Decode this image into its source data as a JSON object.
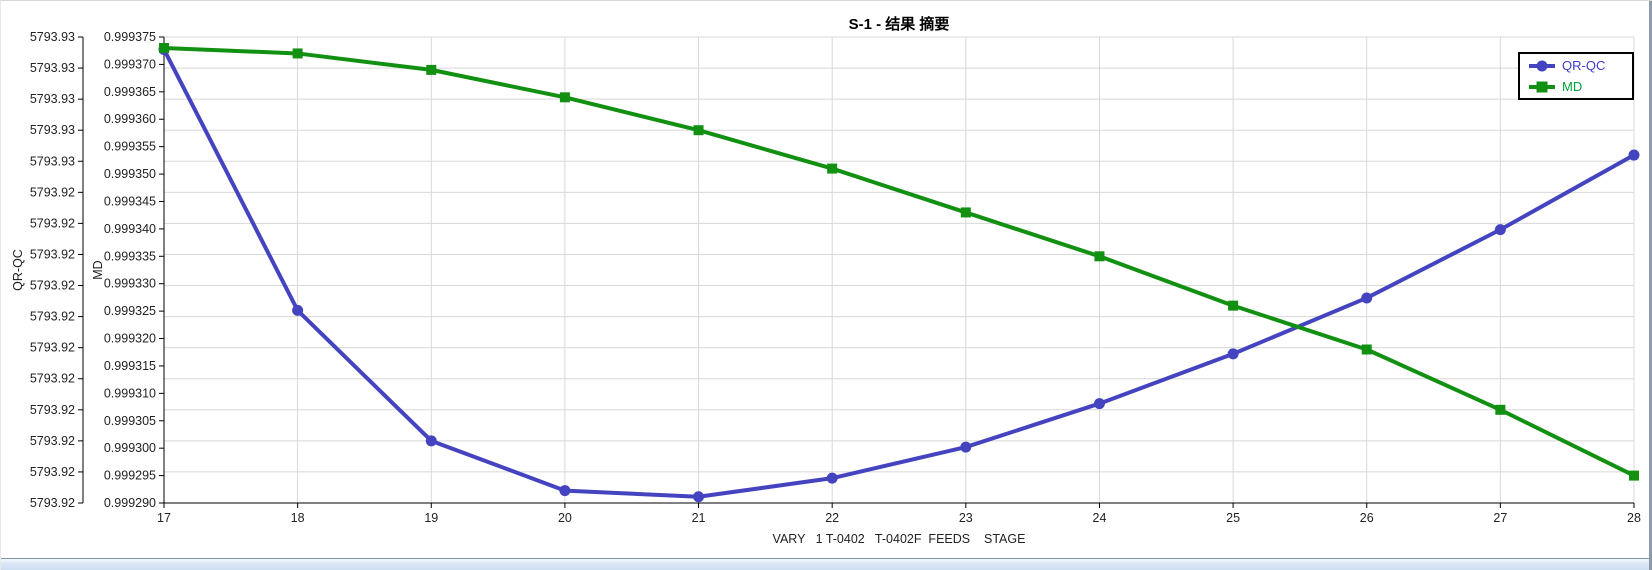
{
  "window": {
    "title_text": "S-1 - 结果 摘要"
  },
  "chart_data": {
    "type": "line",
    "title": "S-1 - 结果 摘要",
    "grid": true,
    "legend_position": "top-right",
    "x": [
      17,
      18,
      19,
      20,
      21,
      22,
      23,
      24,
      25,
      26,
      27,
      28
    ],
    "x_axis": {
      "label": "VARY   1 T-0402   T-0402F  FEEDS    STAGE",
      "ticks": [
        "17",
        "18",
        "19",
        "20",
        "21",
        "22",
        "23",
        "24",
        "25",
        "26",
        "27",
        "28"
      ],
      "range": [
        17,
        28
      ]
    },
    "left_axis": {
      "label": "QR-QC",
      "range": [
        5793.9195,
        5793.927
      ],
      "tick_labels": [
        "5793.93",
        "5793.93",
        "5793.93",
        "5793.93",
        "5793.93",
        "5793.92",
        "5793.92",
        "5793.92",
        "5793.92",
        "5793.92",
        "5793.92",
        "5793.92",
        "5793.92",
        "5793.92",
        "5793.92",
        "5793.92"
      ]
    },
    "md_axis": {
      "label": "MD",
      "range": [
        0.99929,
        0.999375
      ],
      "tick_step": 5e-06,
      "tick_labels": [
        "0.999375",
        "0.999370",
        "0.999365",
        "0.999360",
        "0.999355",
        "0.999350",
        "0.999345",
        "0.999340",
        "0.999335",
        "0.999330",
        "0.999325",
        "0.999320",
        "0.999315",
        "0.999310",
        "0.999305",
        "0.999300",
        "0.999295",
        "0.999290"
      ]
    },
    "series": [
      {
        "name": "QR-QC",
        "axis": "left",
        "color": "#4444c0",
        "legend_text_color": "#3c3cc8",
        "marker": "circle",
        "values": [
          5793.9268,
          5793.9226,
          5793.9205,
          5793.9197,
          5793.9196,
          5793.9199,
          5793.9204,
          5793.9211,
          5793.9219,
          5793.9228,
          5793.9239,
          5793.9251
        ]
      },
      {
        "name": "MD",
        "axis": "md",
        "color": "#129012",
        "legend_text_color": "#00a33c",
        "marker": "square",
        "values": [
          0.999373,
          0.999372,
          0.999369,
          0.999364,
          0.999358,
          0.999351,
          0.999343,
          0.999335,
          0.999326,
          0.999318,
          0.999307,
          0.999295
        ]
      }
    ]
  },
  "ui_colors": {
    "gridline": "#d8d8d8",
    "axis": "#000000",
    "tick_text": "#222222",
    "window_right_border": "#8e99a9",
    "bottom_bar_line": "#8593a4",
    "bottom_bar_fill": "#d9e6f6"
  }
}
